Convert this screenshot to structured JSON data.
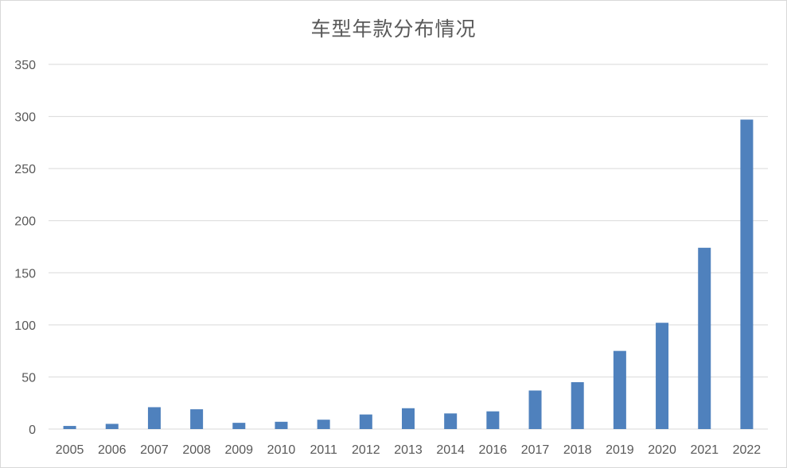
{
  "chart_data": {
    "type": "bar",
    "title": "车型年款分布情况",
    "xlabel": "",
    "ylabel": "",
    "categories": [
      "2005",
      "2006",
      "2007",
      "2008",
      "2009",
      "2010",
      "2011",
      "2012",
      "2013",
      "2014",
      "2016",
      "2017",
      "2018",
      "2019",
      "2020",
      "2021",
      "2022"
    ],
    "values": [
      3,
      5,
      21,
      19,
      6,
      7,
      9,
      14,
      20,
      15,
      17,
      37,
      45,
      75,
      102,
      174,
      297
    ],
    "ylim": [
      0,
      350
    ],
    "yticks": [
      0,
      50,
      100,
      150,
      200,
      250,
      300,
      350
    ],
    "grid": true,
    "legend": "none",
    "bar_color": "#4f81bd",
    "grid_color": "#d9d9d9"
  }
}
